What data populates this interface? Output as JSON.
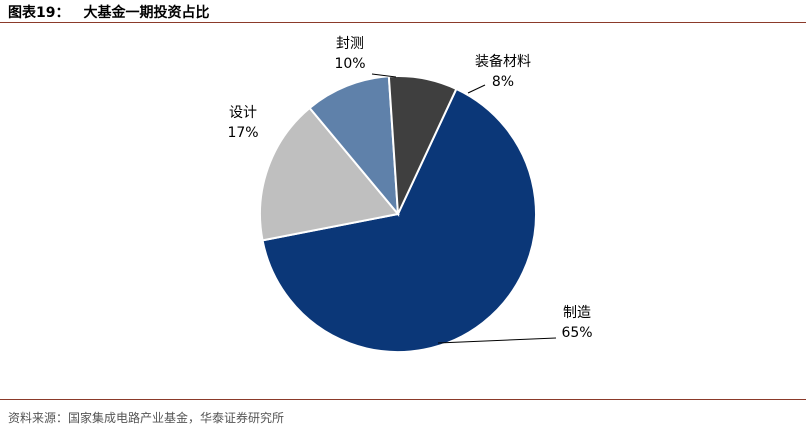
{
  "header": {
    "figure_label": "图表19：",
    "title": "大基金一期投资占比"
  },
  "footer": {
    "source": "资料来源：国家集成电路产业基金，华泰证券研究所"
  },
  "colors": {
    "制造": "#0B3778",
    "封测": "#5F81AA",
    "装备材料": "#3F3F3F",
    "设计": "#BFBFBF",
    "rule": "#8B3A2A"
  },
  "chart_data": {
    "type": "pie",
    "title": "大基金一期投资占比",
    "slices": [
      {
        "name": "制造",
        "value": 65,
        "label": "65%"
      },
      {
        "name": "设计",
        "value": 17,
        "label": "17%"
      },
      {
        "name": "封测",
        "value": 10,
        "label": "10%"
      },
      {
        "name": "装备材料",
        "value": 8,
        "label": "8%"
      }
    ]
  }
}
